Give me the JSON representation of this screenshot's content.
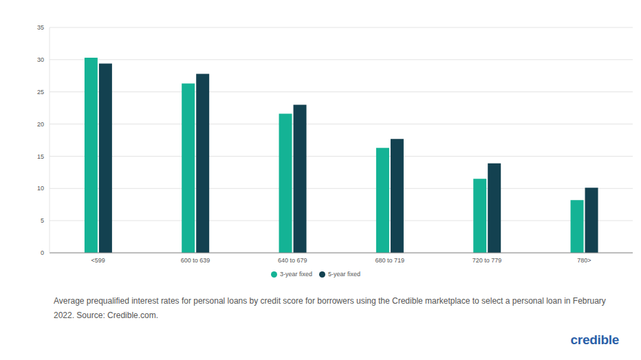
{
  "chart_data": {
    "type": "bar",
    "categories": [
      "<599",
      "600 to 639",
      "640 to 679",
      "680 to 719",
      "720 to 779",
      "780>"
    ],
    "series": [
      {
        "name": "3-year fixed",
        "color": "#14b395",
        "values": [
          30.3,
          26.3,
          21.6,
          16.3,
          11.5,
          8.2
        ]
      },
      {
        "name": "5-year fixed",
        "color": "#134150",
        "values": [
          29.4,
          27.8,
          23.0,
          17.7,
          13.9,
          10.1
        ]
      }
    ],
    "ylim": [
      0,
      35
    ],
    "yticks": [
      0,
      5,
      10,
      15,
      20,
      25,
      30,
      35
    ],
    "grid": true,
    "legend": "bottom",
    "caption": "Average prequalified interest rates for personal loans by credit score for borrowers using the Credible marketplace to select a personal loan in February 2022. Source: Credible.com.",
    "logo": "credible"
  }
}
